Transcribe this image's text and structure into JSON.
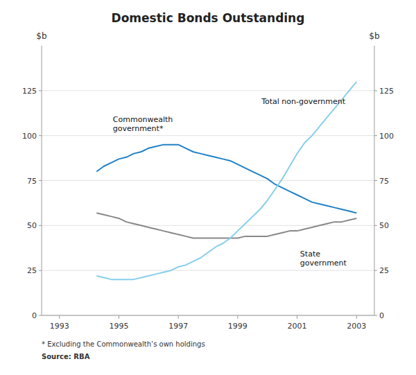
{
  "chart_data": {
    "type": "line",
    "title": "Domestic Bonds Outstanding",
    "ylabel": "$b",
    "y2label": "$b",
    "x": [
      1994.25,
      1994.5,
      1994.75,
      1995.0,
      1995.25,
      1995.5,
      1995.75,
      1996.0,
      1996.25,
      1996.5,
      1996.75,
      1997.0,
      1997.25,
      1997.5,
      1997.75,
      1998.0,
      1998.25,
      1998.5,
      1998.75,
      1999.0,
      1999.25,
      1999.5,
      1999.75,
      2000.0,
      2000.25,
      2000.5,
      2000.75,
      2001.0,
      2001.25,
      2001.5,
      2001.75,
      2002.0,
      2002.25,
      2002.5,
      2002.75,
      2003.0
    ],
    "series": [
      {
        "color": "#2080c8",
        "values": [
          80,
          83,
          85,
          87,
          88,
          90,
          91,
          93,
          94,
          95,
          95,
          95,
          93,
          91,
          90,
          89,
          88,
          87,
          86,
          84,
          82,
          80,
          78,
          76,
          73,
          71,
          69,
          67,
          65,
          63,
          62,
          61,
          60,
          59,
          58,
          57
        ]
      },
      {
        "color": "#888888",
        "values": [
          57,
          56,
          55,
          54,
          52,
          51,
          50,
          49,
          48,
          47,
          46,
          45,
          44,
          43,
          43,
          43,
          43,
          43,
          43,
          43,
          44,
          44,
          44,
          44,
          45,
          46,
          47,
          47,
          48,
          49,
          50,
          51,
          52,
          52,
          53,
          54
        ]
      },
      {
        "color": "#87ceeb",
        "values": [
          22,
          21,
          20,
          20,
          20,
          20,
          21,
          22,
          23,
          24,
          25,
          27,
          28,
          30,
          32,
          35,
          38,
          40,
          43,
          47,
          51,
          55,
          59,
          64,
          70,
          76,
          83,
          90,
          96,
          100,
          105,
          110,
          115,
          120,
          125,
          130
        ]
      }
    ],
    "annotations": [
      {
        "text": "Commonwealth\ngovernment*",
        "x": 1994.8,
        "y": 112
      },
      {
        "text": "State\ngovernment",
        "x": 2001.1,
        "y": 37
      },
      {
        "text": "Total non-government",
        "x": 1999.8,
        "y": 122
      }
    ],
    "xlim": [
      1992.4,
      2003.6
    ],
    "xticks": [
      1993,
      1995,
      1997,
      1999,
      2001,
      2003
    ],
    "ylim": [
      0,
      150
    ],
    "yticks": [
      0,
      25,
      50,
      75,
      100,
      125
    ],
    "y2lim": [
      0,
      150
    ],
    "y2ticks": [
      0,
      25,
      50,
      75,
      100,
      125
    ],
    "grid": true,
    "footnote": "*    Excluding the Commonwealth’s own holdings",
    "source": "Source: RBA"
  }
}
